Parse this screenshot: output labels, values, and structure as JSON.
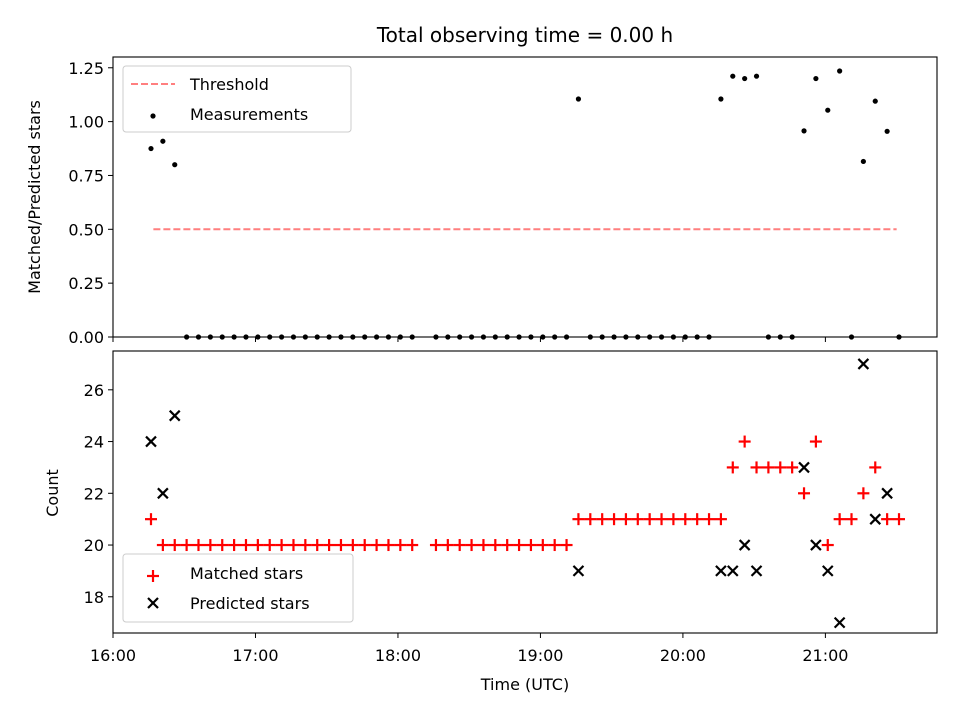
{
  "chart_data": [
    {
      "type": "scatter",
      "panel": "top",
      "title": "Total observing time = 0.00 h",
      "xlabel": "",
      "ylabel": "Matched/Predicted stars",
      "ylim": [
        0,
        1.3
      ],
      "yticks": [
        0.0,
        0.25,
        0.5,
        0.75,
        1.0,
        1.25
      ],
      "ytick_labels": [
        "0.00",
        "0.25",
        "0.50",
        "0.75",
        "1.00",
        "1.25"
      ],
      "legend_position": "upper left",
      "series": [
        {
          "name": "Threshold",
          "kind": "line",
          "color": "#ff7f7f",
          "style": "dashed",
          "x": [
            "16:17",
            "21:30"
          ],
          "y": [
            0.5,
            0.5
          ]
        },
        {
          "name": "Measurements",
          "kind": "scatter",
          "color": "#000000",
          "marker": "dot",
          "x": [
            "16:16",
            "16:21",
            "16:26",
            "16:31",
            "16:36",
            "16:41",
            "16:46",
            "16:51",
            "16:56",
            "17:01",
            "17:06",
            "17:11",
            "17:16",
            "17:21",
            "17:26",
            "17:31",
            "17:36",
            "17:41",
            "17:46",
            "17:51",
            "17:56",
            "18:01",
            "18:06",
            "18:16",
            "18:21",
            "18:26",
            "18:31",
            "18:36",
            "18:41",
            "18:46",
            "18:51",
            "18:56",
            "19:01",
            "19:06",
            "19:11",
            "19:16",
            "19:21",
            "19:26",
            "19:31",
            "19:36",
            "19:41",
            "19:46",
            "19:51",
            "19:56",
            "20:01",
            "20:06",
            "20:11",
            "20:16",
            "20:21",
            "20:26",
            "20:31",
            "20:36",
            "20:41",
            "20:46",
            "20:51",
            "20:56",
            "21:01",
            "21:06",
            "21:11",
            "21:16",
            "21:21",
            "21:26",
            "21:31"
          ],
          "y": [
            0.875,
            0.909,
            0.8,
            0,
            0,
            0,
            0,
            0,
            0,
            0,
            0,
            0,
            0,
            0,
            0,
            0,
            0,
            0,
            0,
            0,
            0,
            0,
            0,
            0,
            0,
            0,
            0,
            0,
            0,
            0,
            0,
            0,
            0,
            0,
            0,
            1.105,
            0,
            0,
            0,
            0,
            0,
            0,
            0,
            0,
            0,
            0,
            0,
            1.105,
            1.211,
            1.2,
            1.211,
            0,
            0,
            0,
            0.957,
            1.2,
            1.053,
            1.235,
            0,
            0.815,
            1.095,
            0.955,
            0
          ]
        }
      ]
    },
    {
      "type": "scatter",
      "panel": "bottom",
      "title": "",
      "xlabel": "Time (UTC)",
      "ylabel": "Count",
      "ylim": [
        16.6,
        27.5
      ],
      "yticks": [
        18,
        20,
        22,
        24,
        26
      ],
      "ytick_labels": [
        "18",
        "20",
        "22",
        "24",
        "26"
      ],
      "xlim": [
        "16:00",
        "21:47"
      ],
      "xticks": [
        "16:00",
        "17:00",
        "18:00",
        "19:00",
        "20:00",
        "21:00"
      ],
      "xtick_labels": [
        "16:00",
        "17:00",
        "18:00",
        "19:00",
        "20:00",
        "21:00"
      ],
      "legend_position": "lower left",
      "series": [
        {
          "name": "Matched stars",
          "kind": "scatter",
          "color": "#ff0000",
          "marker": "plus",
          "x": [
            "16:16",
            "16:21",
            "16:26",
            "16:31",
            "16:36",
            "16:41",
            "16:46",
            "16:51",
            "16:56",
            "17:01",
            "17:06",
            "17:11",
            "17:16",
            "17:21",
            "17:26",
            "17:31",
            "17:36",
            "17:41",
            "17:46",
            "17:51",
            "17:56",
            "18:01",
            "18:06",
            "18:16",
            "18:21",
            "18:26",
            "18:31",
            "18:36",
            "18:41",
            "18:46",
            "18:51",
            "18:56",
            "19:01",
            "19:06",
            "19:11",
            "19:16",
            "19:21",
            "19:26",
            "19:31",
            "19:36",
            "19:41",
            "19:46",
            "19:51",
            "19:56",
            "20:01",
            "20:06",
            "20:11",
            "20:16",
            "20:21",
            "20:26",
            "20:31",
            "20:36",
            "20:41",
            "20:46",
            "20:51",
            "20:56",
            "21:01",
            "21:06",
            "21:11",
            "21:16",
            "21:21",
            "21:26",
            "21:31"
          ],
          "y": [
            21,
            20,
            20,
            20,
            20,
            20,
            20,
            20,
            20,
            20,
            20,
            20,
            20,
            20,
            20,
            20,
            20,
            20,
            20,
            20,
            20,
            20,
            20,
            20,
            20,
            20,
            20,
            20,
            20,
            20,
            20,
            20,
            20,
            20,
            20,
            21,
            21,
            21,
            21,
            21,
            21,
            21,
            21,
            21,
            21,
            21,
            21,
            21,
            23,
            24,
            23,
            23,
            23,
            23,
            22,
            24,
            20,
            21,
            21,
            22,
            23,
            21,
            21
          ]
        },
        {
          "name": "Predicted stars",
          "kind": "scatter",
          "color": "#000000",
          "marker": "x",
          "x": [
            "16:16",
            "16:21",
            "16:26",
            "19:16",
            "20:16",
            "20:21",
            "20:26",
            "20:31",
            "20:51",
            "20:56",
            "21:01",
            "21:06",
            "21:16",
            "21:21",
            "21:26"
          ],
          "y": [
            24,
            22,
            25,
            19,
            19,
            19,
            20,
            19,
            23,
            20,
            19,
            17,
            27,
            21,
            22
          ]
        }
      ]
    }
  ]
}
